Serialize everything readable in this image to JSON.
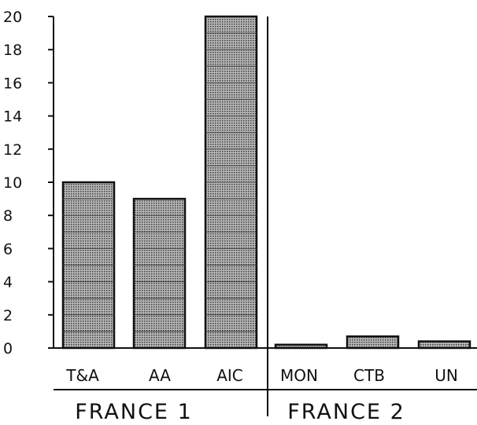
{
  "chart_data": {
    "type": "bar",
    "title": "",
    "xlabel": "",
    "ylabel": "",
    "ylim": [
      0,
      20
    ],
    "yticks": [
      0,
      2,
      4,
      6,
      8,
      10,
      12,
      14,
      16,
      18,
      20
    ],
    "grid": false,
    "legend": "none",
    "categories": [
      "T&A",
      "AA",
      "AIC",
      "MON",
      "CTB",
      "UN"
    ],
    "values": [
      10,
      9,
      20,
      0.2,
      0.7,
      0.4
    ],
    "groups": [
      {
        "label": "FRANCE 1",
        "categories": [
          "T&A",
          "AA",
          "AIC"
        ]
      },
      {
        "label": "FRANCE 2",
        "categories": [
          "MON",
          "CTB",
          "UN"
        ]
      }
    ],
    "bar_color": "#9a9a9a"
  }
}
